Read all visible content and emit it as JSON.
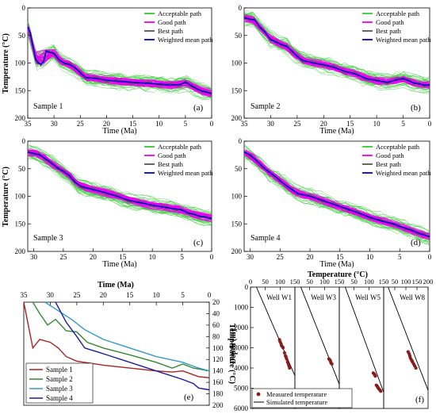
{
  "chart_data": [
    {
      "panel": "(a)",
      "type": "line",
      "sample_label": "Sample 1",
      "xlabel": "Time (Ma)",
      "ylabel": "Temperature (°C)",
      "xlim": [
        35,
        0
      ],
      "ylim": [
        0,
        200
      ],
      "xticks": [
        35,
        30,
        25,
        20,
        15,
        10,
        5,
        0
      ],
      "yticks": [
        0,
        50,
        100,
        150,
        200
      ],
      "legend_position": "top-right",
      "legend": [
        {
          "label": "Acceptable path",
          "color": "#33cc33"
        },
        {
          "label": "Good path",
          "color": "#ee00ee"
        },
        {
          "label": "Best path",
          "color": "#555555"
        },
        {
          "label": "Weighted mean path",
          "color": "#0000cc"
        }
      ],
      "series": [
        {
          "name": "Weighted mean path",
          "x": [
            35,
            34.5,
            34,
            33.5,
            33,
            32.5,
            32,
            31.5,
            31,
            30,
            29,
            28,
            27,
            26,
            25,
            24,
            22,
            20,
            18,
            15,
            12,
            10,
            8,
            6,
            5,
            4,
            3,
            2,
            1,
            0
          ],
          "y": [
            35,
            45,
            70,
            93,
            100,
            102,
            98,
            78,
            80,
            82,
            95,
            100,
            103,
            108,
            118,
            126,
            128,
            131,
            133,
            135,
            137,
            138,
            140,
            139,
            135,
            140,
            146,
            150,
            153,
            155
          ]
        }
      ]
    },
    {
      "panel": "(b)",
      "type": "line",
      "sample_label": "Sample 2",
      "xlabel": "Time (Ma)",
      "ylabel": "",
      "xlim": [
        35,
        0
      ],
      "ylim": [
        0,
        200
      ],
      "xticks": [
        35,
        30,
        25,
        20,
        15,
        10,
        5,
        0
      ],
      "yticks": [
        0,
        50,
        100,
        150,
        200
      ],
      "legend_position": "top-right",
      "legend": [
        {
          "label": "Acceptable path",
          "color": "#33cc33"
        },
        {
          "label": "Good path",
          "color": "#ee00ee"
        },
        {
          "label": "Best path",
          "color": "#555555"
        },
        {
          "label": "Weighted mean path",
          "color": "#0000cc"
        }
      ],
      "series": [
        {
          "name": "Weighted mean path",
          "x": [
            35,
            34,
            33,
            32,
            31,
            30,
            29,
            28,
            27,
            26,
            25,
            24,
            22,
            20,
            18,
            16,
            14,
            12,
            10,
            8,
            6,
            5,
            4,
            3,
            2,
            1,
            0
          ],
          "y": [
            18,
            20,
            22,
            35,
            45,
            57,
            62,
            66,
            70,
            78,
            88,
            95,
            100,
            103,
            108,
            115,
            120,
            128,
            132,
            135,
            130,
            128,
            132,
            136,
            138,
            140,
            140
          ]
        }
      ]
    },
    {
      "panel": "(c)",
      "type": "line",
      "sample_label": "Sample 3",
      "xlabel": "Time (Ma)",
      "ylabel": "Temperature (°C)",
      "xlim": [
        31,
        0
      ],
      "ylim": [
        0,
        200
      ],
      "xticks": [
        30,
        25,
        20,
        15,
        10,
        5,
        0
      ],
      "yticks": [
        0,
        50,
        100,
        150,
        200
      ],
      "legend_position": "top-right",
      "legend": [
        {
          "label": "Acceptable path",
          "color": "#33cc33"
        },
        {
          "label": "Good path",
          "color": "#ee00ee"
        },
        {
          "label": "Best path",
          "color": "#555555"
        },
        {
          "label": "Weighted mean path",
          "color": "#0000cc"
        }
      ],
      "series": [
        {
          "name": "Weighted mean path",
          "x": [
            31,
            30,
            29,
            28,
            27,
            26,
            25,
            24,
            23,
            22,
            20,
            18,
            16,
            14,
            12,
            10,
            8,
            6,
            5,
            4,
            3,
            2,
            1,
            0
          ],
          "y": [
            20,
            22,
            25,
            32,
            40,
            48,
            55,
            62,
            75,
            82,
            88,
            93,
            100,
            107,
            112,
            116,
            120,
            123,
            125,
            130,
            133,
            136,
            138,
            140
          ]
        }
      ]
    },
    {
      "panel": "(d)",
      "type": "line",
      "sample_label": "Sample 4",
      "xlabel": "Time (Ma)",
      "ylabel": "",
      "xlim": [
        31,
        0
      ],
      "ylim": [
        0,
        200
      ],
      "xticks": [
        30,
        25,
        20,
        15,
        10,
        5,
        0
      ],
      "yticks": [
        0,
        50,
        100,
        150,
        200
      ],
      "legend_position": "top-right",
      "legend": [
        {
          "label": "Acceptable path",
          "color": "#33cc33"
        },
        {
          "label": "Good path",
          "color": "#ee00ee"
        },
        {
          "label": "Best path",
          "color": "#555555"
        },
        {
          "label": "Weighted mean path",
          "color": "#0000cc"
        }
      ],
      "series": [
        {
          "name": "Weighted mean path",
          "x": [
            31,
            30,
            29,
            28,
            27,
            26,
            25,
            24,
            23,
            22,
            20,
            18,
            16,
            14,
            12,
            10,
            8,
            6,
            5,
            4,
            3,
            2,
            1,
            0
          ],
          "y": [
            20,
            25,
            35,
            45,
            55,
            62,
            72,
            80,
            88,
            95,
            100,
            107,
            115,
            122,
            130,
            138,
            145,
            150,
            155,
            158,
            162,
            166,
            170,
            173
          ]
        }
      ]
    },
    {
      "panel": "(e)",
      "type": "line",
      "xlabel": "Time (Ma)",
      "ylabel": "Temperature (°C)",
      "xlim": [
        35,
        0
      ],
      "ylim": [
        20,
        200
      ],
      "xticks": [
        35,
        30,
        25,
        20,
        15,
        10,
        5,
        0
      ],
      "yticks": [
        20,
        40,
        60,
        80,
        100,
        120,
        140,
        160,
        180,
        200
      ],
      "legend_position": "bottom-left",
      "series": [
        {
          "name": "Sample 1",
          "color": "#aa2222",
          "x": [
            35,
            33.3,
            32,
            30,
            28.5,
            27,
            25,
            20,
            15,
            10,
            7,
            5,
            2,
            0
          ],
          "y": [
            20,
            100,
            85,
            90,
            100,
            115,
            123,
            130,
            135,
            140,
            142,
            140,
            150,
            152
          ]
        },
        {
          "name": "Sample 2",
          "color": "#338833",
          "x": [
            33.3,
            32,
            30.5,
            29,
            27,
            25,
            23,
            20,
            15,
            10,
            7,
            5,
            3,
            0
          ],
          "y": [
            20,
            40,
            60,
            50,
            70,
            72,
            90,
            100,
            112,
            125,
            135,
            128,
            135,
            140
          ]
        },
        {
          "name": "Sample 3",
          "color": "#3399cc",
          "x": [
            31,
            28.5,
            26,
            23.5,
            20,
            15,
            10,
            5,
            2,
            0
          ],
          "y": [
            20,
            35,
            50,
            68,
            85,
            100,
            115,
            125,
            135,
            140
          ]
        },
        {
          "name": "Sample 4",
          "color": "#1a1aaa",
          "x": [
            29,
            27,
            25,
            23.5,
            20,
            15,
            10,
            5,
            3,
            2,
            0
          ],
          "y": [
            20,
            55,
            80,
            100,
            110,
            125,
            140,
            155,
            162,
            170,
            173
          ]
        }
      ]
    },
    {
      "panel": "(f)",
      "type": "scatter",
      "xlabel": "Temperature (°C)",
      "ylabel": "Depth (m)",
      "ylim": [
        0,
        6000
      ],
      "yticks": [
        0,
        1000,
        2000,
        3000,
        4000,
        5000,
        6000
      ],
      "x_axes": [
        {
          "xlim": [
            0,
            150
          ],
          "xticks": [
            0,
            50,
            100,
            150
          ]
        },
        {
          "xlim": [
            0,
            150
          ],
          "xticks": [
            50,
            100,
            150
          ]
        },
        {
          "xlim": [
            0,
            150
          ],
          "xticks": [
            50,
            100,
            150
          ]
        },
        {
          "xlim": [
            0,
            200
          ],
          "xticks": [
            50,
            100,
            150,
            200
          ]
        }
      ],
      "legend_position": "bottom-left",
      "legend": [
        {
          "label": "Measured temperature",
          "color": "#8b1a1a"
        },
        {
          "label": "Simulated temperature",
          "color": "#000000"
        }
      ],
      "wells": [
        {
          "name": "Well W1",
          "simulated": {
            "x": [
              20,
              150
            ],
            "y": [
              0,
              4380
            ]
          },
          "measured": {
            "x": [
              98,
              100,
              103,
              105,
              108,
              110,
              115,
              118,
              120,
              122,
              125,
              128,
              130,
              132
            ],
            "y": [
              2600,
              2700,
              2800,
              2900,
              2950,
              3000,
              3250,
              3400,
              3450,
              3550,
              3700,
              3800,
              3900,
              4000
            ]
          }
        },
        {
          "name": "Well W3",
          "simulated": {
            "x": [
              20,
              150
            ],
            "y": [
              0,
              4800
            ]
          },
          "measured": {
            "x": [
              115,
              118,
              120,
              122,
              125
            ],
            "y": [
              3550,
              3600,
              3650,
              3750,
              3800
            ]
          }
        },
        {
          "name": "Well W5",
          "simulated": {
            "x": [
              20,
              150
            ],
            "y": [
              0,
              5200
            ]
          },
          "measured": {
            "x": [
              115,
              118,
              120,
              122,
              125,
              128,
              130,
              132,
              135,
              138,
              140
            ],
            "y": [
              4250,
              4300,
              4350,
              4400,
              4850,
              4900,
              4950,
              5000,
              5050,
              5100,
              5150
            ]
          }
        },
        {
          "name": "Well W8",
          "simulated": {
            "x": [
              20,
              200
            ],
            "y": [
              0,
              5100
            ]
          },
          "measured": {
            "x": [
              110,
              115,
              118,
              120,
              125,
              128,
              130,
              135,
              140,
              145
            ],
            "y": [
              3200,
              3300,
              3400,
              3500,
              3600,
              3650,
              3700,
              3800,
              3900,
              4000
            ]
          }
        }
      ]
    }
  ]
}
